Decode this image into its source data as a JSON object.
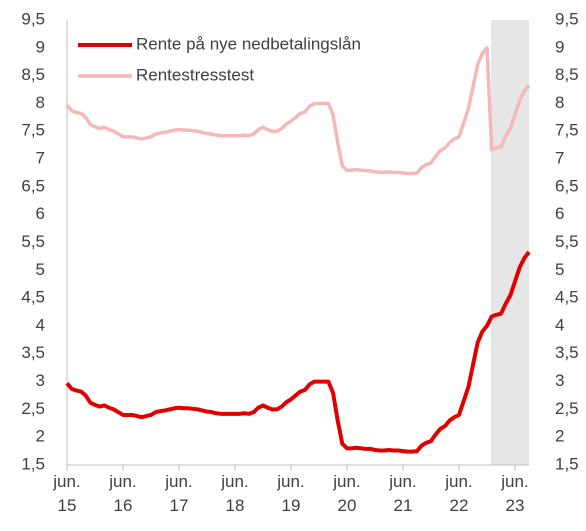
{
  "chart_data": {
    "type": "line",
    "categories": [
      "jun. 15",
      null,
      null,
      null,
      null,
      null,
      null,
      null,
      null,
      null,
      null,
      null,
      "jun. 16",
      null,
      null,
      null,
      null,
      null,
      null,
      null,
      null,
      null,
      null,
      null,
      "jun. 17",
      null,
      null,
      null,
      null,
      null,
      null,
      null,
      null,
      null,
      null,
      null,
      "jun. 18",
      null,
      null,
      null,
      null,
      null,
      null,
      null,
      null,
      null,
      null,
      null,
      "jun. 19",
      null,
      null,
      null,
      null,
      null,
      null,
      null,
      null,
      null,
      null,
      null,
      "jun. 20",
      null,
      null,
      null,
      null,
      null,
      null,
      null,
      null,
      null,
      null,
      null,
      "jun. 21",
      null,
      null,
      null,
      null,
      null,
      null,
      null,
      null,
      null,
      null,
      null,
      "jun. 22",
      null,
      null,
      null,
      null,
      null,
      null,
      null,
      null,
      null,
      null,
      null,
      "jun. 23",
      null,
      null,
      null
    ],
    "series": [
      {
        "name": "Rente på nye nedbetalingslån",
        "color": "#e00000",
        "values": [
          2.97,
          2.87,
          2.84,
          2.82,
          2.75,
          2.62,
          2.58,
          2.55,
          2.57,
          2.53,
          2.5,
          2.45,
          2.4,
          2.4,
          2.4,
          2.38,
          2.36,
          2.38,
          2.4,
          2.45,
          2.47,
          2.48,
          2.5,
          2.52,
          2.53,
          2.52,
          2.52,
          2.51,
          2.5,
          2.48,
          2.46,
          2.45,
          2.43,
          2.42,
          2.42,
          2.42,
          2.42,
          2.42,
          2.43,
          2.42,
          2.45,
          2.53,
          2.57,
          2.53,
          2.5,
          2.5,
          2.55,
          2.63,
          2.68,
          2.75,
          2.82,
          2.85,
          2.95,
          3.0,
          3.0,
          3.0,
          3.0,
          2.8,
          2.3,
          1.88,
          1.8,
          1.8,
          1.81,
          1.8,
          1.79,
          1.79,
          1.77,
          1.76,
          1.76,
          1.77,
          1.76,
          1.76,
          1.75,
          1.74,
          1.74,
          1.75,
          1.85,
          1.9,
          1.93,
          2.05,
          2.15,
          2.2,
          2.3,
          2.36,
          2.4,
          2.65,
          2.9,
          3.3,
          3.7,
          3.9,
          4.0,
          4.17,
          4.2,
          4.22,
          4.4,
          4.55,
          4.8,
          5.05,
          5.22,
          5.33
        ]
      },
      {
        "name": "Rentestresstest",
        "color": "#f4b8b8",
        "values": [
          7.97,
          7.87,
          7.84,
          7.82,
          7.75,
          7.62,
          7.58,
          7.55,
          7.57,
          7.53,
          7.5,
          7.45,
          7.4,
          7.4,
          7.4,
          7.38,
          7.36,
          7.38,
          7.4,
          7.45,
          7.47,
          7.48,
          7.5,
          7.52,
          7.53,
          7.52,
          7.52,
          7.51,
          7.5,
          7.48,
          7.46,
          7.45,
          7.43,
          7.42,
          7.42,
          7.42,
          7.42,
          7.42,
          7.43,
          7.42,
          7.45,
          7.53,
          7.57,
          7.53,
          7.5,
          7.5,
          7.55,
          7.63,
          7.68,
          7.75,
          7.82,
          7.85,
          7.95,
          8.0,
          8.0,
          8.0,
          8.0,
          7.8,
          7.3,
          6.88,
          6.8,
          6.8,
          6.81,
          6.8,
          6.79,
          6.79,
          6.77,
          6.76,
          6.76,
          6.77,
          6.76,
          6.76,
          6.75,
          6.74,
          6.74,
          6.75,
          6.85,
          6.9,
          6.93,
          7.05,
          7.15,
          7.2,
          7.3,
          7.36,
          7.4,
          7.65,
          7.9,
          8.3,
          8.7,
          8.9,
          9.0,
          7.17,
          7.2,
          7.22,
          7.4,
          7.55,
          7.8,
          8.05,
          8.22,
          8.33
        ]
      }
    ],
    "ylim": [
      1.5,
      9.5
    ],
    "yticks": [
      {
        "value": 1.5,
        "label": "1,5"
      },
      2,
      {
        "value": 2.5,
        "label": "2,5"
      },
      3,
      {
        "value": 3.5,
        "label": "3,5"
      },
      4,
      {
        "value": 4.5,
        "label": "4,5"
      },
      5,
      {
        "value": 5.5,
        "label": "5,5"
      },
      6,
      {
        "value": 6.5,
        "label": "6,5"
      },
      7,
      {
        "value": 7.5,
        "label": "7,5"
      },
      8,
      {
        "value": 8.5,
        "label": "8,5"
      },
      9,
      {
        "value": 9.5,
        "label": "9,5"
      }
    ],
    "y2lim": [
      1.5,
      9.5
    ],
    "y2ticks": [
      {
        "value": 1.5,
        "label": "1,5"
      },
      2,
      {
        "value": 2.5,
        "label": "2,5"
      },
      3,
      {
        "value": 3.5,
        "label": "3,5"
      },
      4,
      {
        "value": 4.5,
        "label": "4,5"
      },
      5,
      {
        "value": 5.5,
        "label": "5,5"
      },
      6,
      {
        "value": 6.5,
        "label": "6,5"
      },
      7,
      {
        "value": 7.5,
        "label": "7,5"
      },
      8,
      {
        "value": 8.5,
        "label": "8,5"
      },
      9,
      {
        "value": 9.5,
        "label": "9,5"
      }
    ],
    "legend": "upper left"
  }
}
